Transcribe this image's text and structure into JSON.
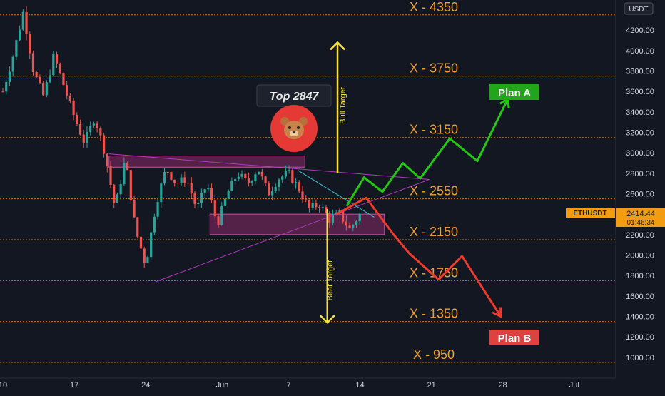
{
  "symbol": "ETHUSDT",
  "currency_button": "USDT",
  "currency_axis_label": "USDT",
  "axis_top_partial_label": "4",
  "price_tag": {
    "price": "2414.44",
    "countdown": "01:46:34"
  },
  "colors": {
    "background": "#131722",
    "candle_up": "#26a69a",
    "candle_down": "#ef5350",
    "level_line": "#d88a2a",
    "level_text": "#f0a030",
    "bull_path": "#22c80f",
    "bear_path": "#ef3b2d",
    "target_arrow": "#f5e13a",
    "zone_fill": "#8a2a6a",
    "triangle_line": "#b03cbc",
    "price_tag_bg": "#f39c12",
    "plan_a_bg": "#22a51a",
    "plan_b_bg": "#e04040",
    "axis_text": "#d1d4dc"
  },
  "labels": {
    "top": "Top 2847",
    "bull_target": "Bull Target",
    "bear_target": "Bear Target",
    "plan_a": "Plan A",
    "plan_b": "Plan B"
  },
  "icons": {
    "bear_marker": "bear-face-icon"
  },
  "chart_data": {
    "type": "candlestick",
    "title": "",
    "xlabel": "",
    "ylabel": "",
    "ylim": [
      930,
      4380
    ],
    "grid": false,
    "y_ticks": [
      "4200.00",
      "4000.00",
      "3800.00",
      "3600.00",
      "3400.00",
      "3200.00",
      "3000.00",
      "2800.00",
      "2600.00",
      "2400.00",
      "2200.00",
      "2000.00",
      "1800.00",
      "1600.00",
      "1400.00",
      "1200.00",
      "1000.00"
    ],
    "x_ticks": [
      "10",
      "17",
      "24",
      "Jun",
      "7",
      "14",
      "21",
      "28",
      "Jul"
    ],
    "levels": [
      {
        "value": 4350,
        "label": "X - 4350"
      },
      {
        "value": 3750,
        "label": "X - 3750"
      },
      {
        "value": 3150,
        "label": "X - 3150"
      },
      {
        "value": 2550,
        "label": "X - 2550"
      },
      {
        "value": 2150,
        "label": "X - 2150"
      },
      {
        "value": 1750,
        "label": "X - 1750"
      },
      {
        "value": 1350,
        "label": "X - 1350"
      },
      {
        "value": 950,
        "label": "X - 950"
      }
    ],
    "last_price": 2414.44,
    "top_annotation_value": 2847,
    "candle_path": [
      [
        10,
        3600
      ],
      [
        11,
        3950
      ],
      [
        12,
        4380
      ],
      [
        13,
        3800
      ],
      [
        14,
        3550
      ],
      [
        15,
        3950
      ],
      [
        16,
        3650
      ],
      [
        17,
        3350
      ],
      [
        18,
        3100
      ],
      [
        19,
        3350
      ],
      [
        20,
        3000
      ],
      [
        21,
        2450
      ],
      [
        22,
        2950
      ],
      [
        23,
        2250
      ],
      [
        24,
        1900
      ],
      [
        25,
        2500
      ],
      [
        26,
        2850
      ],
      [
        27,
        2700
      ],
      [
        28,
        2750
      ],
      [
        29,
        2450
      ],
      [
        30,
        2700
      ],
      [
        31,
        2300
      ],
      [
        32,
        2600
      ],
      [
        33,
        2800
      ],
      [
        34,
        2700
      ],
      [
        35,
        2850
      ],
      [
        36,
        2600
      ],
      [
        37,
        2750
      ],
      [
        38,
        2800
      ],
      [
        39,
        2650
      ],
      [
        40,
        2450
      ],
      [
        41,
        2500
      ],
      [
        42,
        2350
      ],
      [
        43,
        2400
      ],
      [
        44,
        2250
      ],
      [
        45,
        2400
      ]
    ],
    "supply_zone": {
      "x": [
        20.4,
        39.6
      ],
      "y": [
        2860,
        2970
      ]
    },
    "demand_zone": {
      "x": [
        30.3,
        47.4
      ],
      "y": [
        2200,
        2400
      ]
    },
    "triangle_upper": [
      [
        20.4,
        2990
      ],
      [
        51.8,
        2740
      ]
    ],
    "triangle_lower": [
      [
        25.0,
        1740
      ],
      [
        51.8,
        2740
      ]
    ],
    "triangle_cyan": [
      [
        38.9,
        2830
      ],
      [
        46.4,
        2370
      ]
    ],
    "plan_a_path": [
      [
        43.7,
        2480
      ],
      [
        45.4,
        2760
      ],
      [
        47.2,
        2620
      ],
      [
        49.2,
        2900
      ],
      [
        50.9,
        2750
      ],
      [
        53.8,
        3140
      ],
      [
        56.5,
        2920
      ],
      [
        59.5,
        3530
      ]
    ],
    "plan_b_path": [
      [
        42.7,
        2400
      ],
      [
        45.6,
        2560
      ],
      [
        48.3,
        2200
      ],
      [
        49.8,
        2020
      ],
      [
        52.7,
        1760
      ],
      [
        55.0,
        1990
      ],
      [
        58.8,
        1400
      ]
    ],
    "bull_target_arrow": {
      "x": 42.8,
      "y": [
        2800,
        4080
      ]
    },
    "bear_target_arrow": {
      "x": 41.8,
      "y": [
        1340,
        2450
      ]
    }
  }
}
